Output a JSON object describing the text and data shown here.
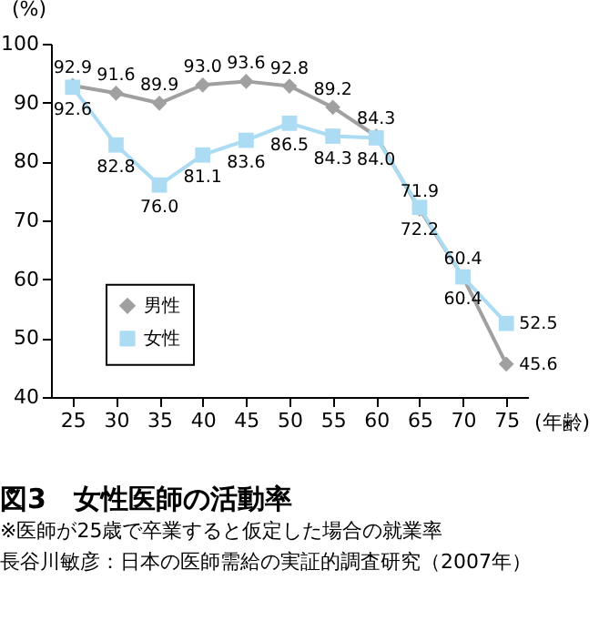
{
  "chart_data": {
    "type": "line",
    "title": "図3　女性医師の活動率",
    "xlabel": "(年齢)",
    "ylabel": "(%)",
    "categories": [
      "25",
      "30",
      "35",
      "40",
      "45",
      "50",
      "55",
      "60",
      "65",
      "70",
      "75"
    ],
    "series": [
      {
        "name": "男性",
        "color": "#a0a0a0",
        "marker": "diamond",
        "values": [
          92.9,
          91.6,
          89.9,
          93.0,
          93.6,
          92.8,
          89.2,
          84.3,
          71.9,
          60.4,
          45.6
        ],
        "value_labels": [
          "92.9",
          "91.6",
          "89.9",
          "93.0",
          "93.6",
          "92.8",
          "89.2",
          "84.3",
          "71.9",
          "60.4",
          "45.6"
        ]
      },
      {
        "name": "女性",
        "color": "#abdcf4",
        "marker": "square",
        "values": [
          92.6,
          82.8,
          76.0,
          81.1,
          83.6,
          86.5,
          84.3,
          84.0,
          72.2,
          60.4,
          52.5
        ],
        "value_labels": [
          "92.6",
          "82.8",
          "76.0",
          "81.1",
          "83.6",
          "86.5",
          "84.3",
          "84.0",
          "72.2",
          "60.4",
          "52.5"
        ]
      }
    ],
    "ylim": [
      40,
      100
    ],
    "yticks": [
      40,
      50,
      60,
      70,
      80,
      90,
      100
    ],
    "legend": "left",
    "grid": false,
    "annotations": [
      "※医師が25歳で卒業すると仮定した場合の就業率",
      "長谷川敏彦：日本の医師需給の実証的調査研究（2007年）"
    ]
  }
}
